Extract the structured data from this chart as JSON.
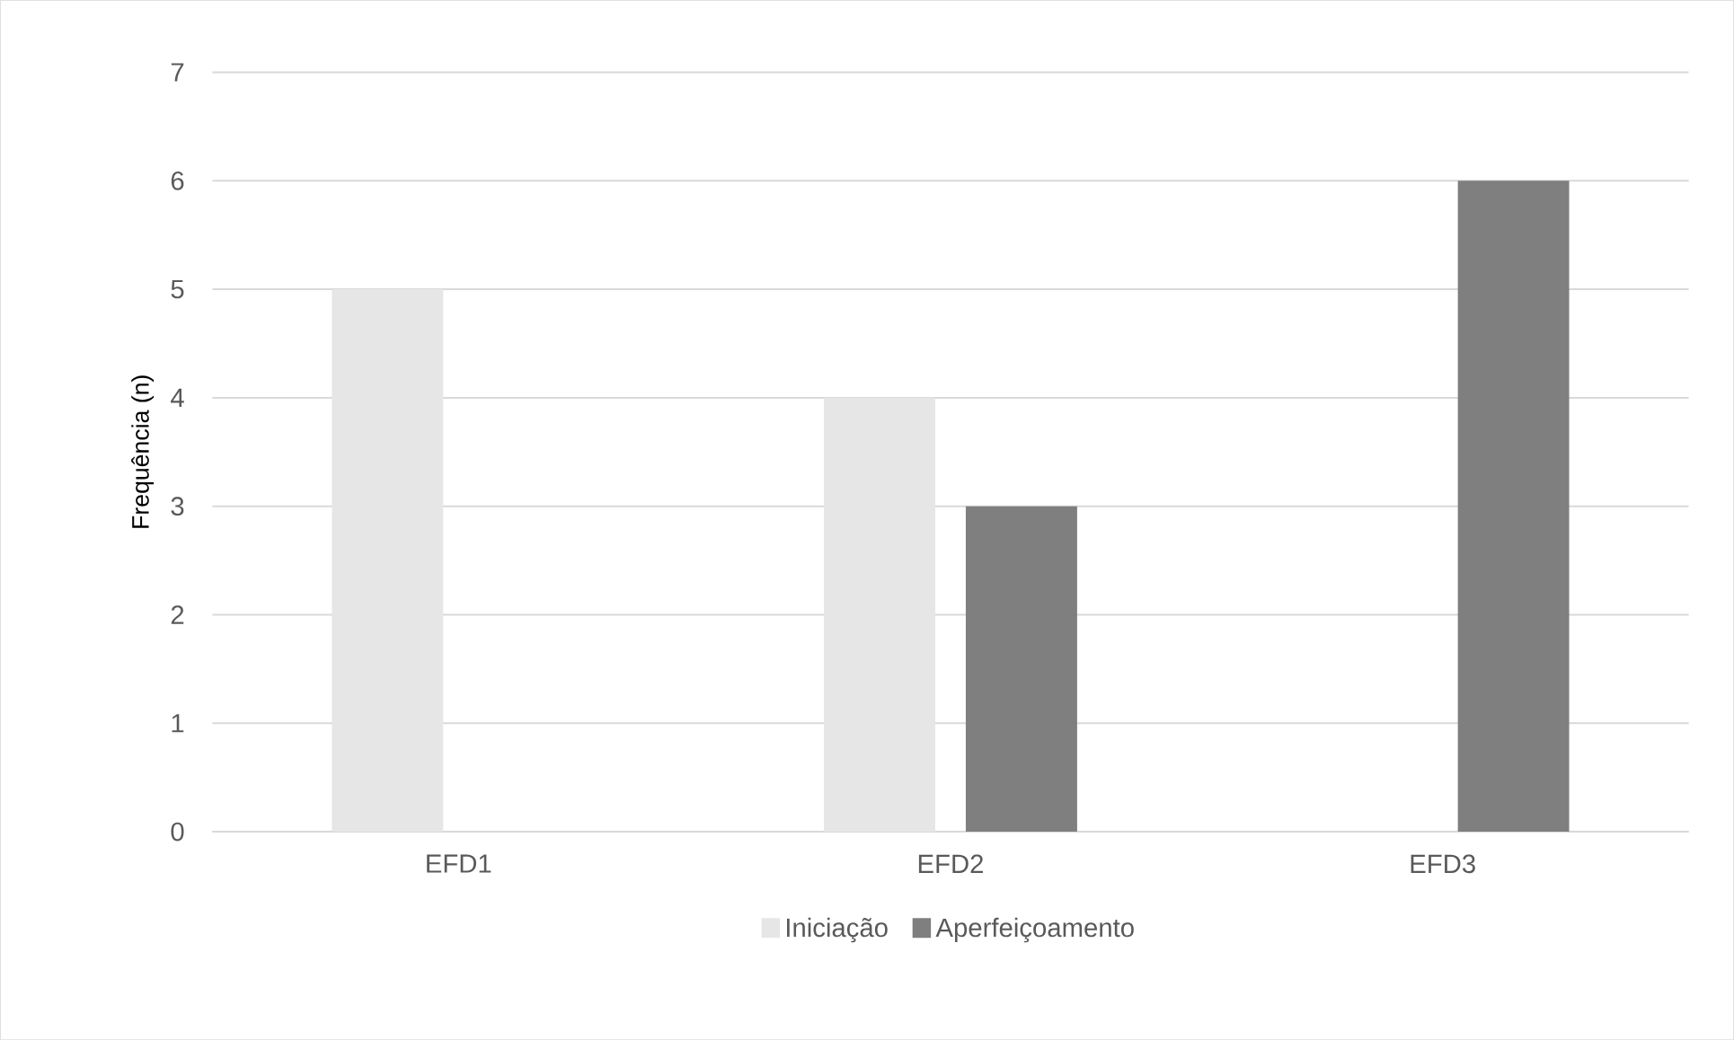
{
  "chart_data": {
    "type": "bar",
    "ylabel": "Frequência (n)",
    "categories": [
      "EFD1",
      "EFD2",
      "EFD3"
    ],
    "series": [
      {
        "name": "Iniciação",
        "color": "#e7e6e6",
        "values": [
          5,
          4,
          0
        ]
      },
      {
        "name": "Aperfeiçoamento",
        "color": "#7f7f7f",
        "values": [
          0,
          3,
          6
        ]
      }
    ],
    "ylim": [
      0,
      7
    ],
    "yticks": [
      0,
      1,
      2,
      3,
      4,
      5,
      6,
      7
    ],
    "grid": "y",
    "legend": "bottom"
  }
}
